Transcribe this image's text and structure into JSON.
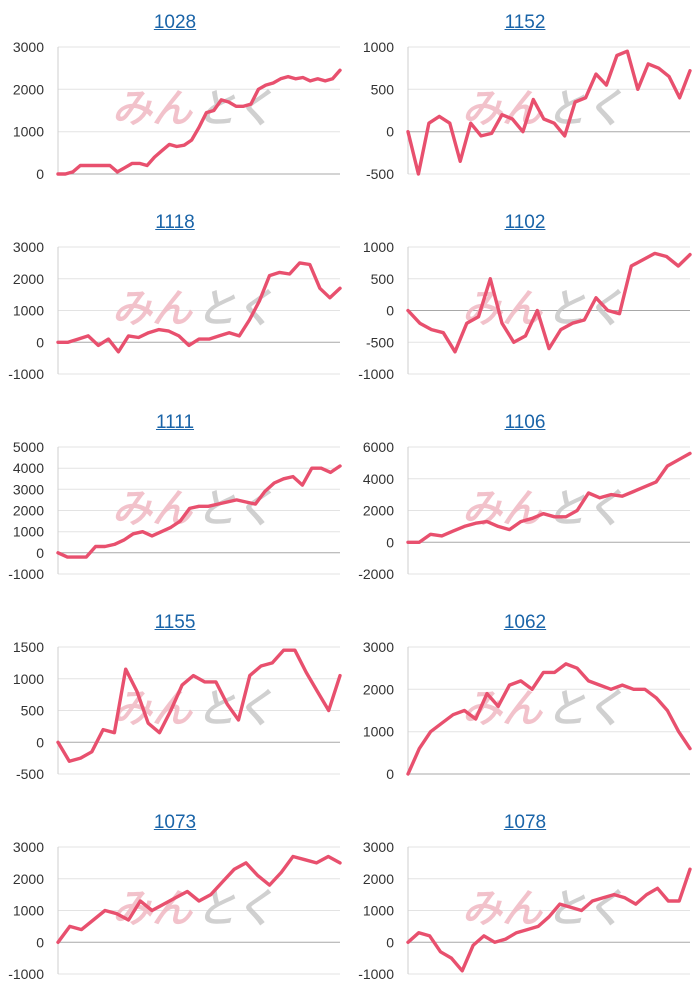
{
  "colors": {
    "series": "#e8506e",
    "title": "#1a64a8",
    "grid": "#e3e3e3",
    "axis": "#bdbdbd",
    "watermark_left": "#f0b8c2",
    "watermark_right": "#c8c8c8"
  },
  "watermark": {
    "left": "みん",
    "right": "とく"
  },
  "chart_data": [
    {
      "type": "line",
      "title": "1028",
      "ylim": [
        0,
        3000
      ],
      "yticks": [
        0,
        1000,
        2000,
        3000
      ],
      "grid": true,
      "values": [
        0,
        0,
        50,
        200,
        200,
        200,
        200,
        200,
        50,
        150,
        250,
        250,
        200,
        400,
        550,
        700,
        650,
        680,
        800,
        1100,
        1450,
        1500,
        1750,
        1700,
        1600,
        1600,
        1650,
        2000,
        2100,
        2150,
        2250,
        2300,
        2250,
        2280,
        2200,
        2250,
        2200,
        2250,
        2450
      ]
    },
    {
      "type": "line",
      "title": "1152",
      "ylim": [
        -500,
        1000
      ],
      "yticks": [
        -500,
        0,
        500,
        1000
      ],
      "grid": true,
      "values": [
        0,
        -500,
        100,
        180,
        100,
        -350,
        100,
        -50,
        -20,
        200,
        150,
        0,
        380,
        150,
        100,
        -50,
        350,
        400,
        680,
        550,
        900,
        950,
        500,
        800,
        750,
        650,
        400,
        720
      ]
    },
    {
      "type": "line",
      "title": "1118",
      "ylim": [
        -1000,
        3000
      ],
      "yticks": [
        -1000,
        0,
        1000,
        2000,
        3000
      ],
      "grid": true,
      "values": [
        0,
        0,
        100,
        200,
        -100,
        100,
        -300,
        200,
        150,
        300,
        400,
        350,
        200,
        -100,
        100,
        100,
        200,
        300,
        200,
        700,
        1300,
        2100,
        2200,
        2150,
        2500,
        2450,
        1700,
        1400,
        1700
      ]
    },
    {
      "type": "line",
      "title": "1102",
      "ylim": [
        -1000,
        1000
      ],
      "yticks": [
        -1000,
        -500,
        0,
        500,
        1000
      ],
      "grid": true,
      "values": [
        0,
        -200,
        -300,
        -350,
        -650,
        -200,
        -100,
        500,
        -200,
        -500,
        -400,
        0,
        -600,
        -300,
        -200,
        -150,
        200,
        0,
        -50,
        700,
        800,
        900,
        850,
        700,
        880
      ]
    },
    {
      "type": "line",
      "title": "1111",
      "ylim": [
        -1000,
        5000
      ],
      "yticks": [
        -1000,
        0,
        1000,
        2000,
        3000,
        4000,
        5000
      ],
      "grid": true,
      "values": [
        0,
        -200,
        -200,
        -200,
        300,
        300,
        400,
        600,
        900,
        1000,
        800,
        1000,
        1200,
        1500,
        2100,
        2200,
        2200,
        2300,
        2400,
        2500,
        2400,
        2300,
        2900,
        3300,
        3500,
        3600,
        3200,
        4000,
        4000,
        3800,
        4100
      ]
    },
    {
      "type": "line",
      "title": "1106",
      "ylim": [
        -2000,
        6000
      ],
      "yticks": [
        -2000,
        0,
        2000,
        4000,
        6000
      ],
      "grid": true,
      "values": [
        0,
        0,
        500,
        400,
        700,
        1000,
        1200,
        1300,
        1000,
        800,
        1300,
        1500,
        1800,
        1600,
        1600,
        2000,
        3100,
        2800,
        3000,
        2900,
        3200,
        3500,
        3800,
        4800,
        5200,
        5600
      ]
    },
    {
      "type": "line",
      "title": "1155",
      "ylim": [
        -500,
        1500
      ],
      "yticks": [
        -500,
        0,
        500,
        1000,
        1500
      ],
      "grid": true,
      "values": [
        0,
        -300,
        -250,
        -150,
        200,
        150,
        1150,
        800,
        300,
        150,
        500,
        900,
        1050,
        950,
        950,
        600,
        350,
        1050,
        1200,
        1250,
        1450,
        1450,
        1100,
        800,
        500,
        1050
      ]
    },
    {
      "type": "line",
      "title": "1062",
      "ylim": [
        0,
        3000
      ],
      "yticks": [
        0,
        1000,
        2000,
        3000
      ],
      "grid": true,
      "values": [
        0,
        600,
        1000,
        1200,
        1400,
        1500,
        1300,
        1900,
        1600,
        2100,
        2200,
        2000,
        2400,
        2400,
        2600,
        2500,
        2200,
        2100,
        2000,
        2100,
        2000,
        2000,
        1800,
        1500,
        1000,
        600
      ]
    },
    {
      "type": "line",
      "title": "1073",
      "ylim": [
        -1000,
        3000
      ],
      "yticks": [
        -1000,
        0,
        1000,
        2000,
        3000
      ],
      "grid": true,
      "values": [
        0,
        500,
        400,
        700,
        1000,
        900,
        700,
        1300,
        1000,
        1200,
        1400,
        1600,
        1300,
        1500,
        1900,
        2300,
        2500,
        2100,
        1800,
        2200,
        2700,
        2600,
        2500,
        2700,
        2500
      ]
    },
    {
      "type": "line",
      "title": "1078",
      "ylim": [
        -1000,
        3000
      ],
      "yticks": [
        -1000,
        0,
        1000,
        2000,
        3000
      ],
      "grid": true,
      "values": [
        0,
        300,
        200,
        -300,
        -500,
        -900,
        -100,
        200,
        0,
        100,
        300,
        400,
        500,
        800,
        1200,
        1100,
        1000,
        1300,
        1400,
        1500,
        1400,
        1200,
        1500,
        1700,
        1300,
        1300,
        2300
      ]
    }
  ]
}
